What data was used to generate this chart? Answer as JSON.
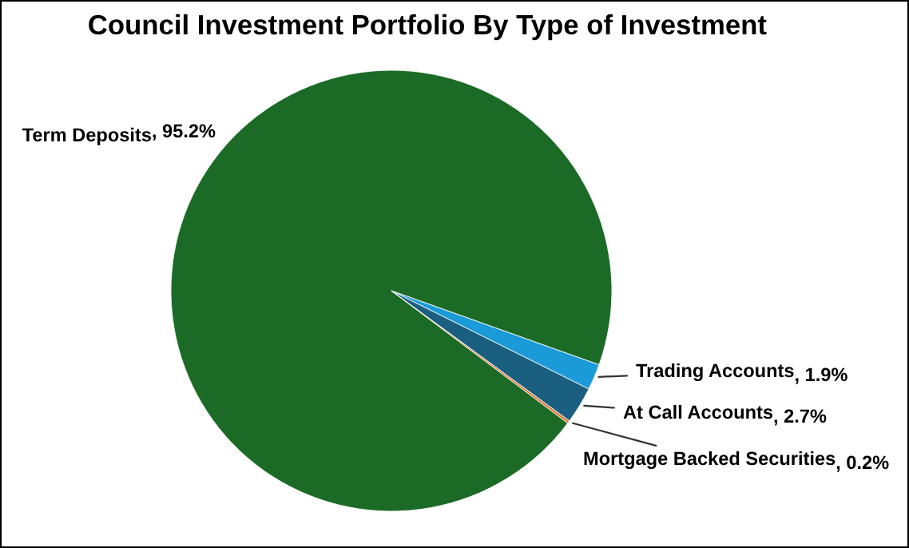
{
  "chart_data": {
    "type": "pie",
    "title": "Council Investment Portfolio By Type of Investment",
    "categories": [
      "Term Deposits",
      "Trading Accounts",
      "At Call Accounts",
      "Mortgage Backed Securities"
    ],
    "values": [
      95.2,
      1.9,
      2.7,
      0.2
    ],
    "colors": [
      "#1b6b26",
      "#1a9ad6",
      "#1a5f80",
      "#e07b39"
    ],
    "value_labels": [
      ", 95.2%",
      ", 1.9%",
      ", 2.7%",
      ", 0.2%"
    ]
  }
}
